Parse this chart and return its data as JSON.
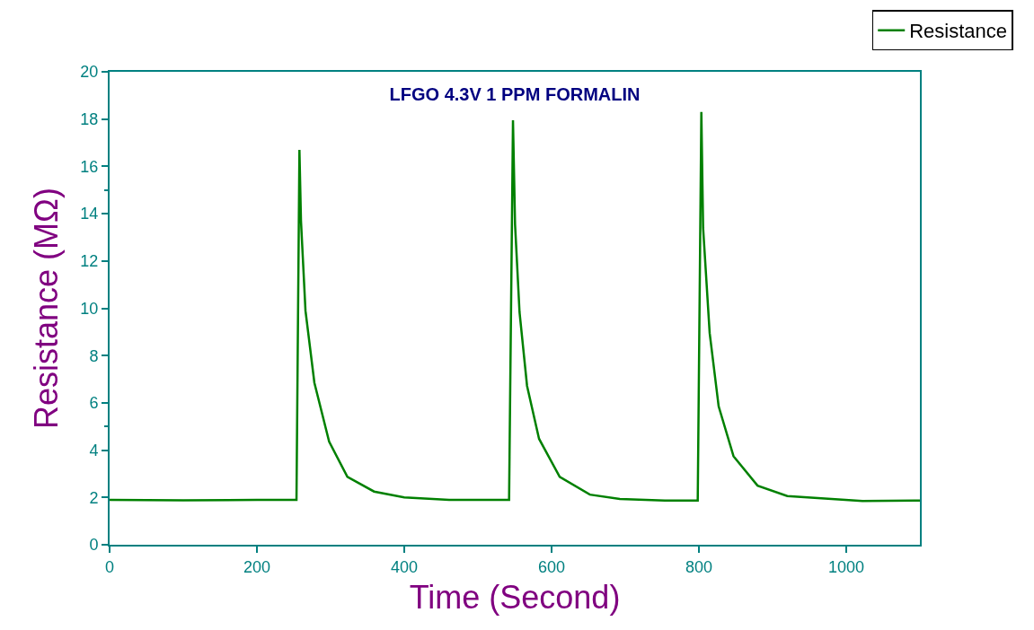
{
  "chart_data": {
    "type": "line",
    "title": "LFGO 4.3V 1 PPM FORMALIN",
    "xlabel": "Time (Second)",
    "ylabel": "Resistance (MΩ)",
    "x": [
      0,
      100,
      200,
      253.7,
      257.7,
      259.8,
      265.9,
      278,
      298,
      322.8,
      359,
      400,
      461,
      542.3,
      547.6,
      550.4,
      556.5,
      566.7,
      583,
      611,
      652,
      692.7,
      753.7,
      798.4,
      803.3,
      805.7,
      814.6,
      826.8,
      847,
      879.6,
      920,
      1022,
      1100
    ],
    "series": [
      {
        "name": "Resistance",
        "color": "#008000",
        "values": [
          1.9,
          1.88,
          1.9,
          1.9,
          16.7,
          13.7,
          9.9,
          6.85,
          4.36,
          2.87,
          2.25,
          2.0,
          1.9,
          1.9,
          17.95,
          13.55,
          9.83,
          6.72,
          4.48,
          2.87,
          2.12,
          1.94,
          1.87,
          1.87,
          18.3,
          13.4,
          8.95,
          5.85,
          3.74,
          2.5,
          2.06,
          1.85,
          1.87
        ]
      }
    ],
    "xlim": [
      0,
      1100
    ],
    "xticks": [
      0,
      200,
      400,
      600,
      800,
      1000
    ],
    "ylim": [
      0,
      20
    ],
    "yticks": [
      0,
      2,
      4,
      6,
      8,
      10,
      12,
      14,
      16,
      18,
      20
    ],
    "grid": false,
    "legend": "top right",
    "marker": "none",
    "line_style": "solid"
  }
}
